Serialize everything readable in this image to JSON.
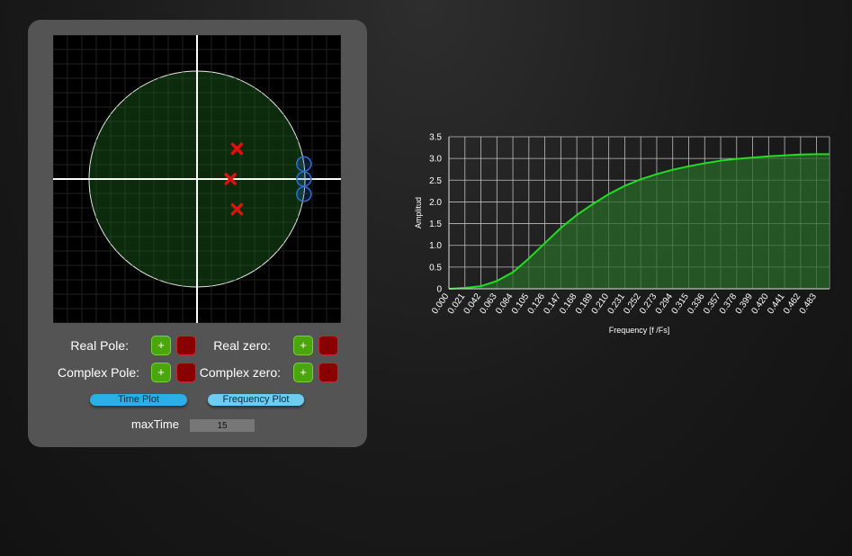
{
  "controls": {
    "real_pole_label": "Real Pole:",
    "complex_pole_label": "Complex Pole:",
    "real_zero_label": "Real zero:",
    "complex_zero_label": "Complex zero:",
    "plus": "+",
    "minus": "-",
    "time_plot_label": "Time Plot",
    "frequency_plot_label": "Frequency Plot",
    "maxtime_label": "maxTime",
    "maxtime_value": "15"
  },
  "zplane": {
    "poles": [
      {
        "re": 0.37,
        "im": 0.28
      },
      {
        "re": 0.31,
        "im": 0.0
      },
      {
        "re": 0.37,
        "im": -0.28
      }
    ],
    "zeros": [
      {
        "re": 0.99,
        "im": 0.14
      },
      {
        "re": 0.99,
        "im": 0.0
      },
      {
        "re": 0.99,
        "im": -0.14
      }
    ],
    "colors": {
      "pole": "#e01010",
      "zero": "#2a6fd6",
      "unit_circle_fill": "#0c2a0c"
    }
  },
  "chart_data": {
    "type": "area",
    "xlabel": "Frequency [f /Fs]",
    "ylabel": "Amplitud",
    "x_ticks": [
      "0.000",
      "0.021",
      "0.042",
      "0.063",
      "0.084",
      "0.105",
      "0.126",
      "0.147",
      "0.168",
      "0.189",
      "0.210",
      "0.231",
      "0.252",
      "0.273",
      "0.294",
      "0.315",
      "0.336",
      "0.357",
      "0.378",
      "0.399",
      "0.420",
      "0.441",
      "0.462",
      "0.483"
    ],
    "y_ticks": [
      "0",
      "0.5",
      "1.0",
      "1.5",
      "2.0",
      "2.5",
      "3.0",
      "3.5"
    ],
    "xlim": [
      0,
      0.5
    ],
    "ylim": [
      0,
      3.5
    ],
    "grid": true,
    "line_color": "#22dd22",
    "fill_color": "#2a6a2a",
    "x": [
      0.0,
      0.021,
      0.042,
      0.063,
      0.084,
      0.105,
      0.126,
      0.147,
      0.168,
      0.189,
      0.21,
      0.231,
      0.252,
      0.273,
      0.294,
      0.315,
      0.336,
      0.357,
      0.378,
      0.399,
      0.42,
      0.441,
      0.462,
      0.483,
      0.5
    ],
    "y": [
      0.0,
      0.02,
      0.06,
      0.18,
      0.38,
      0.7,
      1.05,
      1.4,
      1.7,
      1.95,
      2.18,
      2.37,
      2.52,
      2.64,
      2.74,
      2.82,
      2.89,
      2.95,
      2.99,
      3.02,
      3.05,
      3.07,
      3.09,
      3.1,
      3.1
    ]
  }
}
